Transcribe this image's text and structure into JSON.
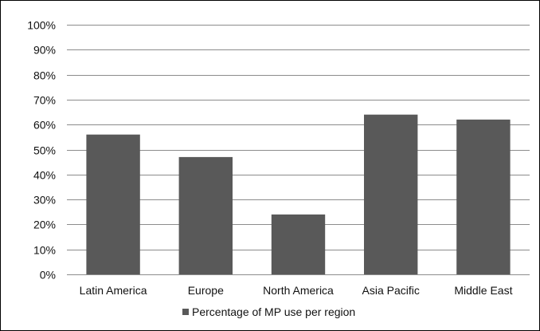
{
  "chart_data": {
    "type": "bar",
    "categories": [
      "Latin America",
      "Europe",
      "North America",
      "Asia Pacific",
      "Middle East"
    ],
    "series": [
      {
        "name": "Percentage of MP use per region",
        "values": [
          56,
          47,
          24,
          64,
          62
        ]
      }
    ],
    "ylim": [
      0,
      100
    ],
    "yticks": [
      "0%",
      "10%",
      "20%",
      "30%",
      "40%",
      "50%",
      "60%",
      "70%",
      "80%",
      "90%",
      "100%"
    ],
    "y_tick_values": [
      0,
      10,
      20,
      30,
      40,
      50,
      60,
      70,
      80,
      90,
      100
    ],
    "grid": true,
    "legend_position": "bottom",
    "colors": {
      "bar": "#595959",
      "grid": "#8c8c8c",
      "text": "#111111"
    }
  }
}
